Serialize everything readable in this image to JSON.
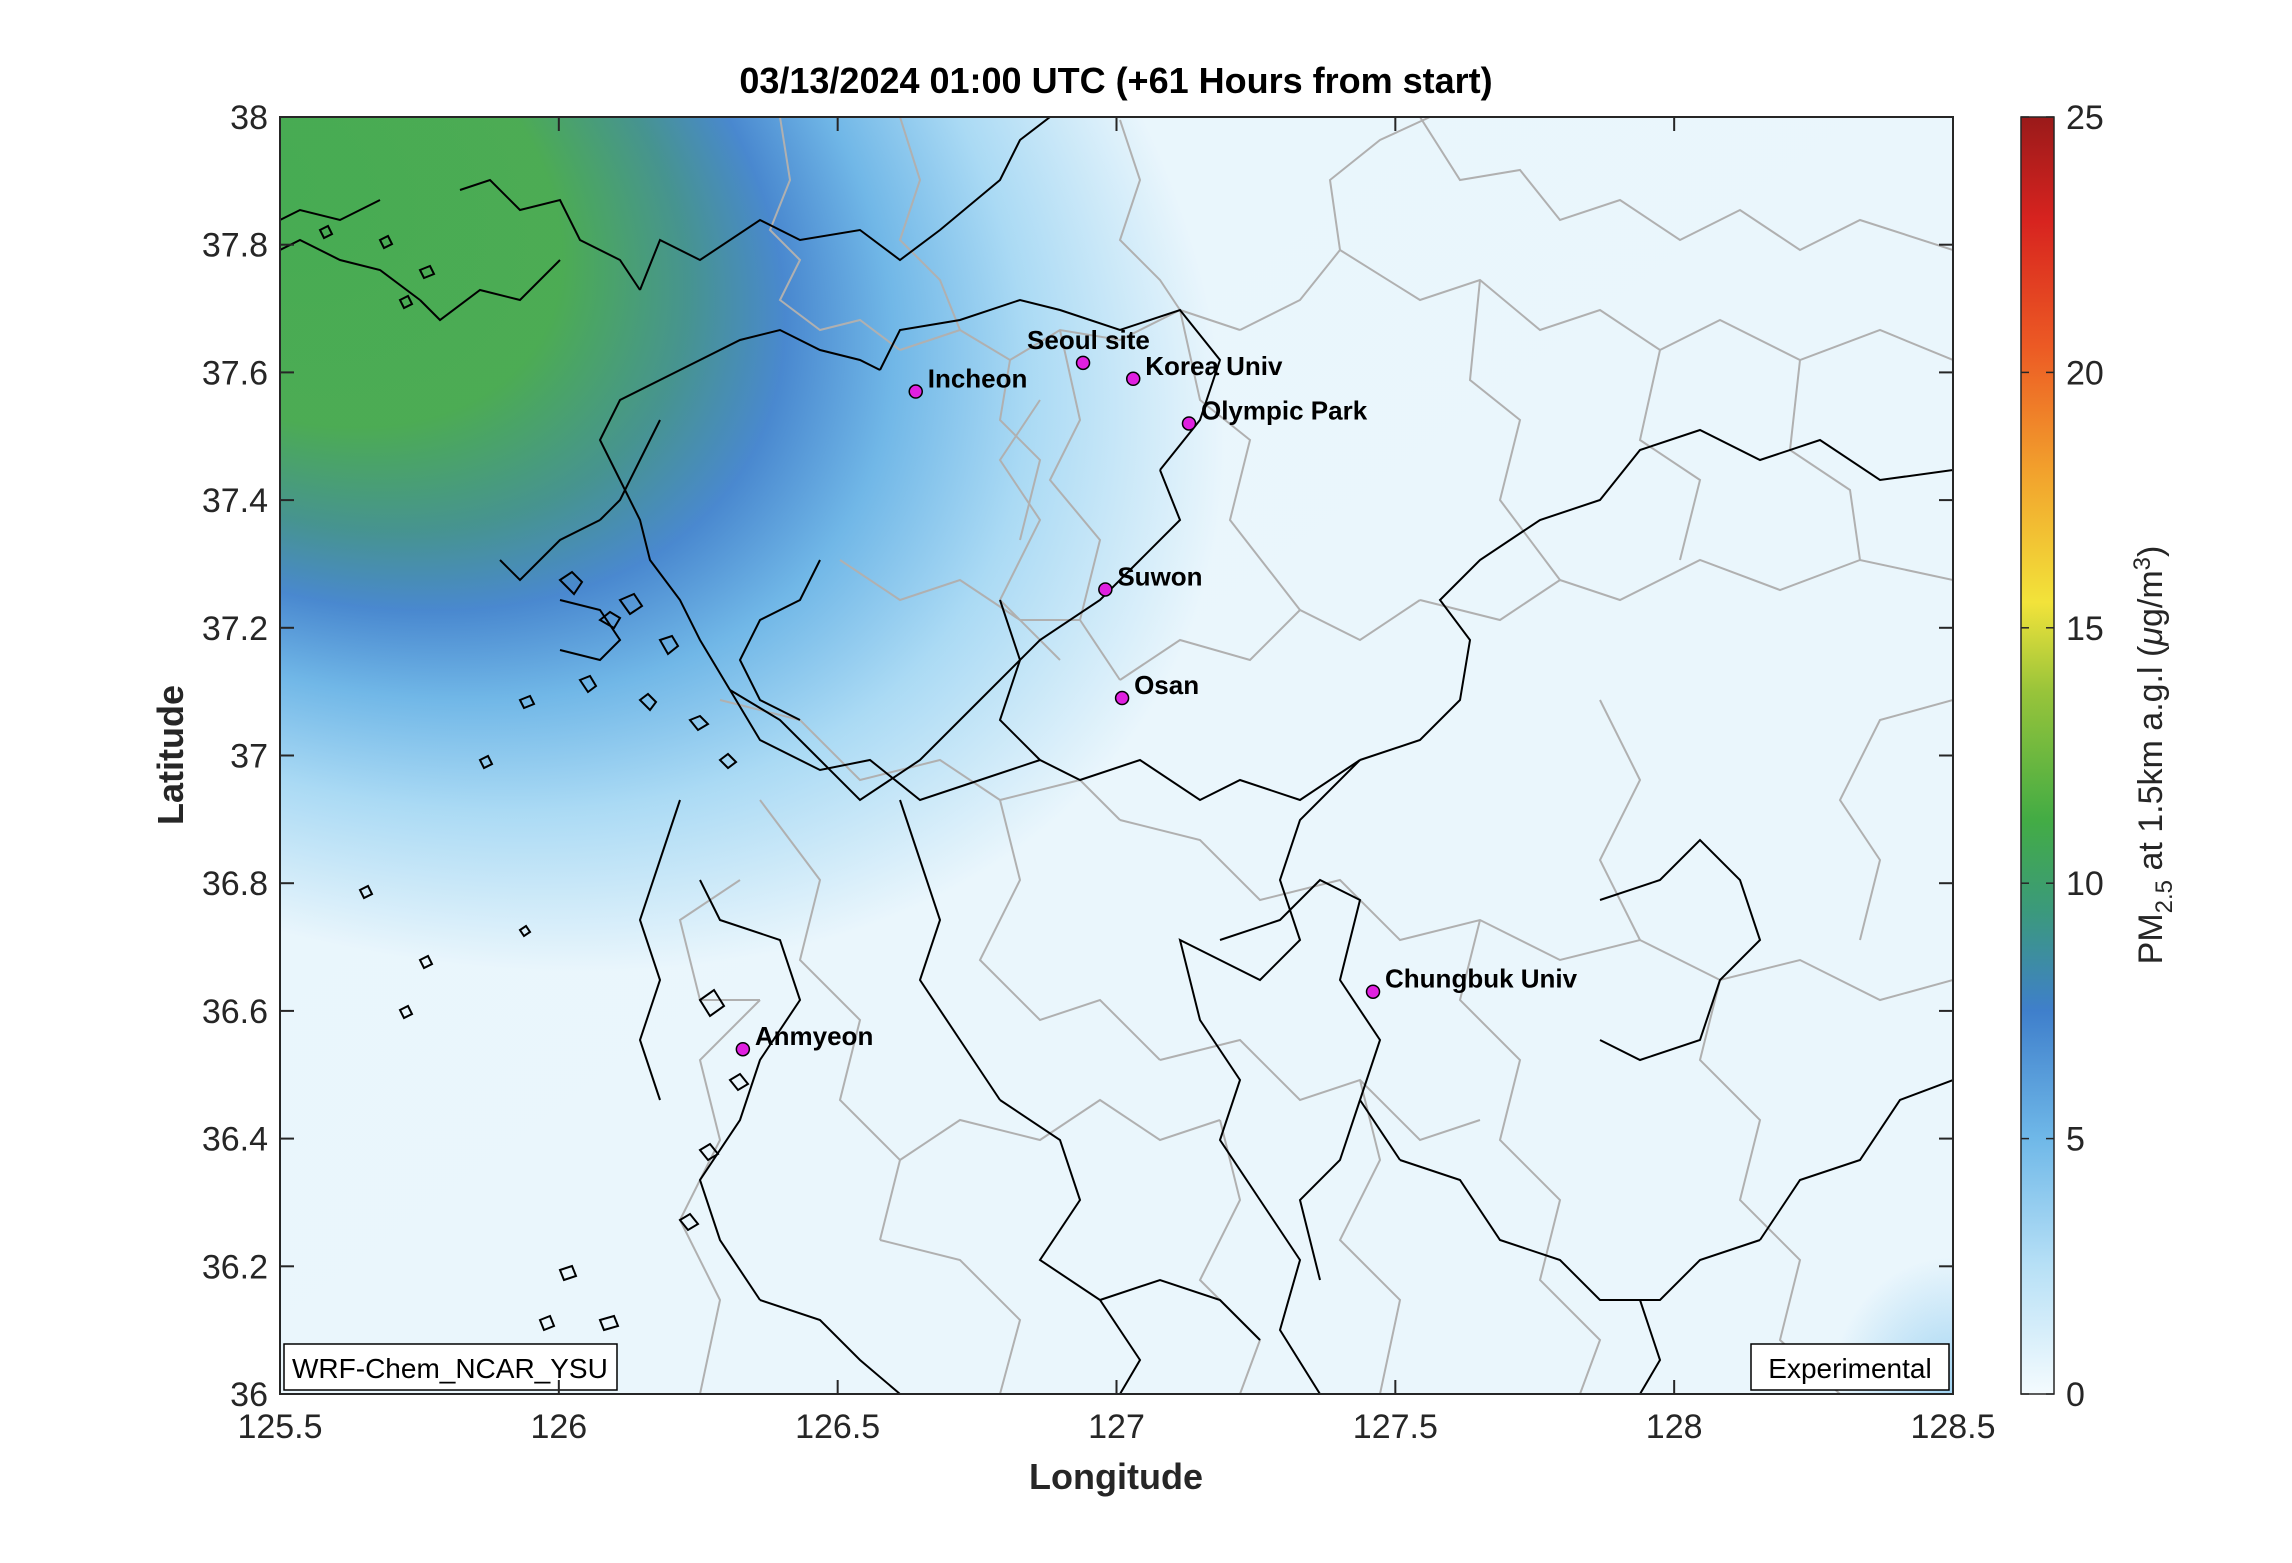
{
  "title": "03/13/2024 01:00 UTC (+61 Hours from start)",
  "axes": {
    "xlabel": "Longitude",
    "ylabel": "Latitude",
    "xticks": [
      "125.5",
      "126",
      "126.5",
      "127",
      "127.5",
      "128",
      "128.5"
    ],
    "yticks": [
      "38",
      "37.8",
      "37.6",
      "37.4",
      "37.2",
      "37",
      "36.8",
      "36.6",
      "36.4",
      "36.2",
      "36"
    ],
    "xlim": [
      125.5,
      128.5
    ],
    "ylim": [
      36,
      38
    ]
  },
  "colorbar": {
    "label_prefix": "PM",
    "label_sub": "2.5",
    "label_mid": " at 1.5km a.g.l (",
    "label_mu": "μ",
    "label_unit": "g/m",
    "label_sup": "3",
    "label_end": ")",
    "ticks": [
      "0",
      "5",
      "10",
      "15",
      "20",
      "25"
    ],
    "range": [
      0,
      25
    ]
  },
  "sites": [
    {
      "name": "Seoul site",
      "lon": 126.94,
      "lat": 37.615
    },
    {
      "name": "Korea Univ",
      "lon": 127.03,
      "lat": 37.59
    },
    {
      "name": "Incheon",
      "lon": 126.64,
      "lat": 37.57
    },
    {
      "name": "Olympic Park",
      "lon": 127.13,
      "lat": 37.52
    },
    {
      "name": "Suwon",
      "lon": 126.98,
      "lat": 37.26
    },
    {
      "name": "Osan",
      "lon": 127.01,
      "lat": 37.09
    },
    {
      "name": "Chungbuk Univ",
      "lon": 127.46,
      "lat": 36.63
    },
    {
      "name": "Anmyeon",
      "lon": 126.33,
      "lat": 36.54
    }
  ],
  "model_label": "WRF-Chem_NCAR_YSU",
  "status_label": "Experimental",
  "colors": {
    "site_marker": "#e020e0",
    "coast": "#000000",
    "admin_border": "#b0b0b0"
  }
}
